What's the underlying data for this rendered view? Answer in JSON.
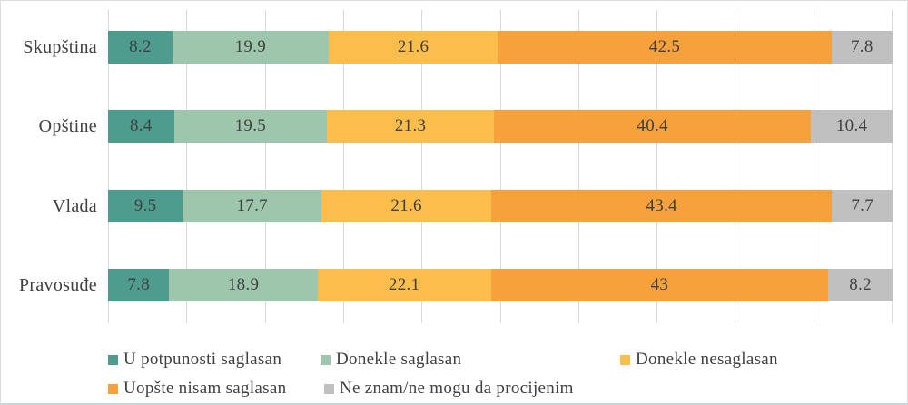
{
  "colors": {
    "background": "#ffffff",
    "gridline": "#d9d9d9",
    "text": "#404040",
    "frame_border": "#d9dddf"
  },
  "chart_data": {
    "type": "bar",
    "orientation": "horizontal",
    "stacked": true,
    "title": "",
    "xlabel": "",
    "ylabel": "",
    "xlim": [
      0,
      100
    ],
    "gridlines": {
      "show": true,
      "interval": 10
    },
    "legend_position": "bottom",
    "data_labels": true,
    "categories": [
      "Skupština",
      "Opštine",
      "Vlada",
      "Pravosuđe"
    ],
    "series": [
      {
        "name": "U potpunosti saglasan",
        "color": "#4D9C8D",
        "values": [
          8.2,
          8.4,
          9.5,
          7.8
        ]
      },
      {
        "name": "Donekle saglasan",
        "color": "#9DC6AC",
        "values": [
          19.9,
          19.5,
          17.7,
          18.9
        ]
      },
      {
        "name": "Donekle nesaglasan",
        "color": "#FBBD4B",
        "values": [
          21.6,
          21.3,
          21.6,
          22.1
        ]
      },
      {
        "name": "Uopšte nisam saglasan",
        "color": "#F6A13C",
        "values": [
          42.5,
          40.4,
          43.4,
          43
        ]
      },
      {
        "name": "Ne znam/ne mogu da procijenim",
        "color": "#C0C0C0",
        "values": [
          7.8,
          10.4,
          7.7,
          8.2
        ]
      }
    ]
  }
}
